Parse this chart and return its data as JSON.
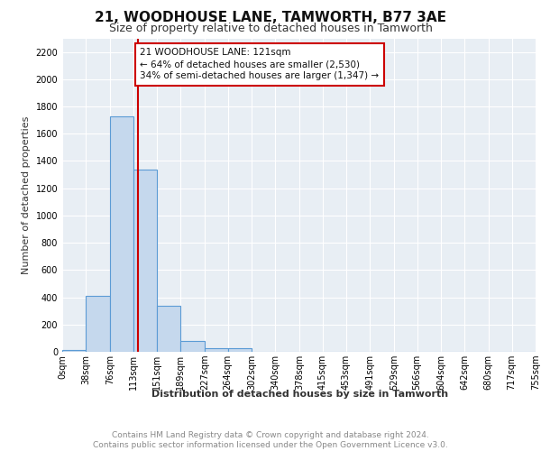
{
  "title": "21, WOODHOUSE LANE, TAMWORTH, B77 3AE",
  "subtitle": "Size of property relative to detached houses in Tamworth",
  "xlabel": "Distribution of detached houses by size in Tamworth",
  "ylabel": "Number of detached properties",
  "footnote1": "Contains HM Land Registry data © Crown copyright and database right 2024.",
  "footnote2": "Contains public sector information licensed under the Open Government Licence v3.0.",
  "bin_labels": [
    "0sqm",
    "38sqm",
    "76sqm",
    "113sqm",
    "151sqm",
    "189sqm",
    "227sqm",
    "264sqm",
    "302sqm",
    "340sqm",
    "378sqm",
    "415sqm",
    "453sqm",
    "491sqm",
    "529sqm",
    "566sqm",
    "604sqm",
    "642sqm",
    "680sqm",
    "717sqm",
    "755sqm"
  ],
  "bin_edges": [
    0,
    38,
    76,
    113,
    151,
    189,
    227,
    264,
    302,
    340,
    378,
    415,
    453,
    491,
    529,
    566,
    604,
    642,
    680,
    717,
    755
  ],
  "bar_heights": [
    15,
    410,
    1730,
    1340,
    340,
    80,
    25,
    25,
    0,
    0,
    0,
    0,
    0,
    0,
    0,
    0,
    0,
    0,
    0,
    0
  ],
  "bar_color": "#c5d8ed",
  "bar_edge_color": "#5b9bd5",
  "bar_edge_width": 0.8,
  "property_line_x": 121,
  "property_line_color": "#cc0000",
  "annotation_text": "21 WOODHOUSE LANE: 121sqm\n← 64% of detached houses are smaller (2,530)\n34% of semi-detached houses are larger (1,347) →",
  "annotation_box_color": "#ffffff",
  "annotation_box_edge_color": "#cc0000",
  "ylim": [
    0,
    2300
  ],
  "yticks": [
    0,
    200,
    400,
    600,
    800,
    1000,
    1200,
    1400,
    1600,
    1800,
    2000,
    2200
  ],
  "bg_color": "#e8eef4",
  "grid_color": "#ffffff",
  "title_fontsize": 11,
  "subtitle_fontsize": 9,
  "xlabel_fontsize": 8,
  "ylabel_fontsize": 8,
  "tick_fontsize": 7,
  "annotation_fontsize": 7.5,
  "footnote_fontsize": 6.5
}
